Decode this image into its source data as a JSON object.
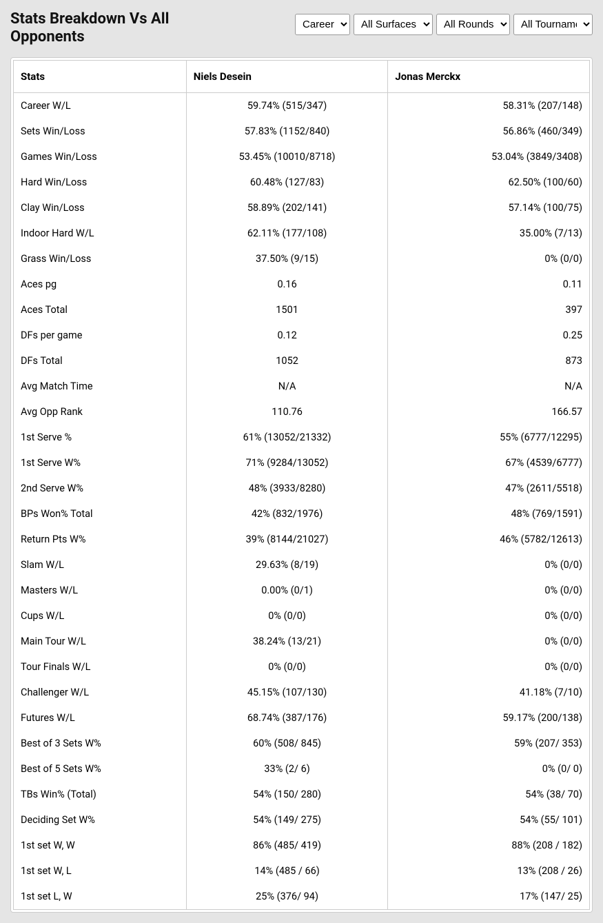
{
  "title": "Stats Breakdown Vs All Opponents",
  "filters": {
    "period": {
      "selected": "Career",
      "options": [
        "Career"
      ]
    },
    "surface": {
      "selected": "All Surfaces",
      "options": [
        "All Surfaces"
      ]
    },
    "round": {
      "selected": "All Rounds",
      "options": [
        "All Rounds"
      ]
    },
    "tournament": {
      "selected": "All Tournaments",
      "options": [
        "All Tournaments"
      ]
    }
  },
  "columns": {
    "stats": "Stats",
    "player1": "Niels Desein",
    "player2": "Jonas Merckx"
  },
  "rows": [
    {
      "stat": "Career W/L",
      "p1": "59.74% (515/347)",
      "p2": "58.31% (207/148)"
    },
    {
      "stat": "Sets Win/Loss",
      "p1": "57.83% (1152/840)",
      "p2": "56.86% (460/349)"
    },
    {
      "stat": "Games Win/Loss",
      "p1": "53.45% (10010/8718)",
      "p2": "53.04% (3849/3408)"
    },
    {
      "stat": "Hard Win/Loss",
      "p1": "60.48% (127/83)",
      "p2": "62.50% (100/60)"
    },
    {
      "stat": "Clay Win/Loss",
      "p1": "58.89% (202/141)",
      "p2": "57.14% (100/75)"
    },
    {
      "stat": "Indoor Hard W/L",
      "p1": "62.11% (177/108)",
      "p2": "35.00% (7/13)"
    },
    {
      "stat": "Grass Win/Loss",
      "p1": "37.50% (9/15)",
      "p2": "0% (0/0)"
    },
    {
      "stat": "Aces pg",
      "p1": "0.16",
      "p2": "0.11"
    },
    {
      "stat": "Aces Total",
      "p1": "1501",
      "p2": "397"
    },
    {
      "stat": "DFs per game",
      "p1": "0.12",
      "p2": "0.25"
    },
    {
      "stat": "DFs Total",
      "p1": "1052",
      "p2": "873"
    },
    {
      "stat": "Avg Match Time",
      "p1": "N/A",
      "p2": "N/A"
    },
    {
      "stat": "Avg Opp Rank",
      "p1": "110.76",
      "p2": "166.57"
    },
    {
      "stat": "1st Serve %",
      "p1": "61% (13052/21332)",
      "p2": "55% (6777/12295)"
    },
    {
      "stat": "1st Serve W%",
      "p1": "71% (9284/13052)",
      "p2": "67% (4539/6777)"
    },
    {
      "stat": "2nd Serve W%",
      "p1": "48% (3933/8280)",
      "p2": "47% (2611/5518)"
    },
    {
      "stat": "BPs Won% Total",
      "p1": "42% (832/1976)",
      "p2": "48% (769/1591)"
    },
    {
      "stat": "Return Pts W%",
      "p1": "39% (8144/21027)",
      "p2": "46% (5782/12613)"
    },
    {
      "stat": "Slam W/L",
      "p1": "29.63% (8/19)",
      "p2": "0% (0/0)"
    },
    {
      "stat": "Masters W/L",
      "p1": "0.00% (0/1)",
      "p2": "0% (0/0)"
    },
    {
      "stat": "Cups W/L",
      "p1": "0% (0/0)",
      "p2": "0% (0/0)"
    },
    {
      "stat": "Main Tour W/L",
      "p1": "38.24% (13/21)",
      "p2": "0% (0/0)"
    },
    {
      "stat": "Tour Finals W/L",
      "p1": "0% (0/0)",
      "p2": "0% (0/0)"
    },
    {
      "stat": "Challenger W/L",
      "p1": "45.15% (107/130)",
      "p2": "41.18% (7/10)"
    },
    {
      "stat": "Futures W/L",
      "p1": "68.74% (387/176)",
      "p2": "59.17% (200/138)"
    },
    {
      "stat": "Best of 3 Sets W%",
      "p1": "60% (508/ 845)",
      "p2": "59% (207/ 353)"
    },
    {
      "stat": "Best of 5 Sets W%",
      "p1": "33% (2/ 6)",
      "p2": "0% (0/ 0)"
    },
    {
      "stat": "TBs Win% (Total)",
      "p1": "54% (150/ 280)",
      "p2": "54% (38/ 70)"
    },
    {
      "stat": "Deciding Set W%",
      "p1": "54% (149/ 275)",
      "p2": "54% (55/ 101)"
    },
    {
      "stat": "1st set W, W",
      "p1": "86% (485/ 419)",
      "p2": "88% (208 / 182)"
    },
    {
      "stat": "1st set W, L",
      "p1": "14% (485 / 66)",
      "p2": "13% (208 / 26)"
    },
    {
      "stat": "1st set L, W",
      "p1": "25% (376/ 94)",
      "p2": "17% (147/ 25)"
    }
  ]
}
